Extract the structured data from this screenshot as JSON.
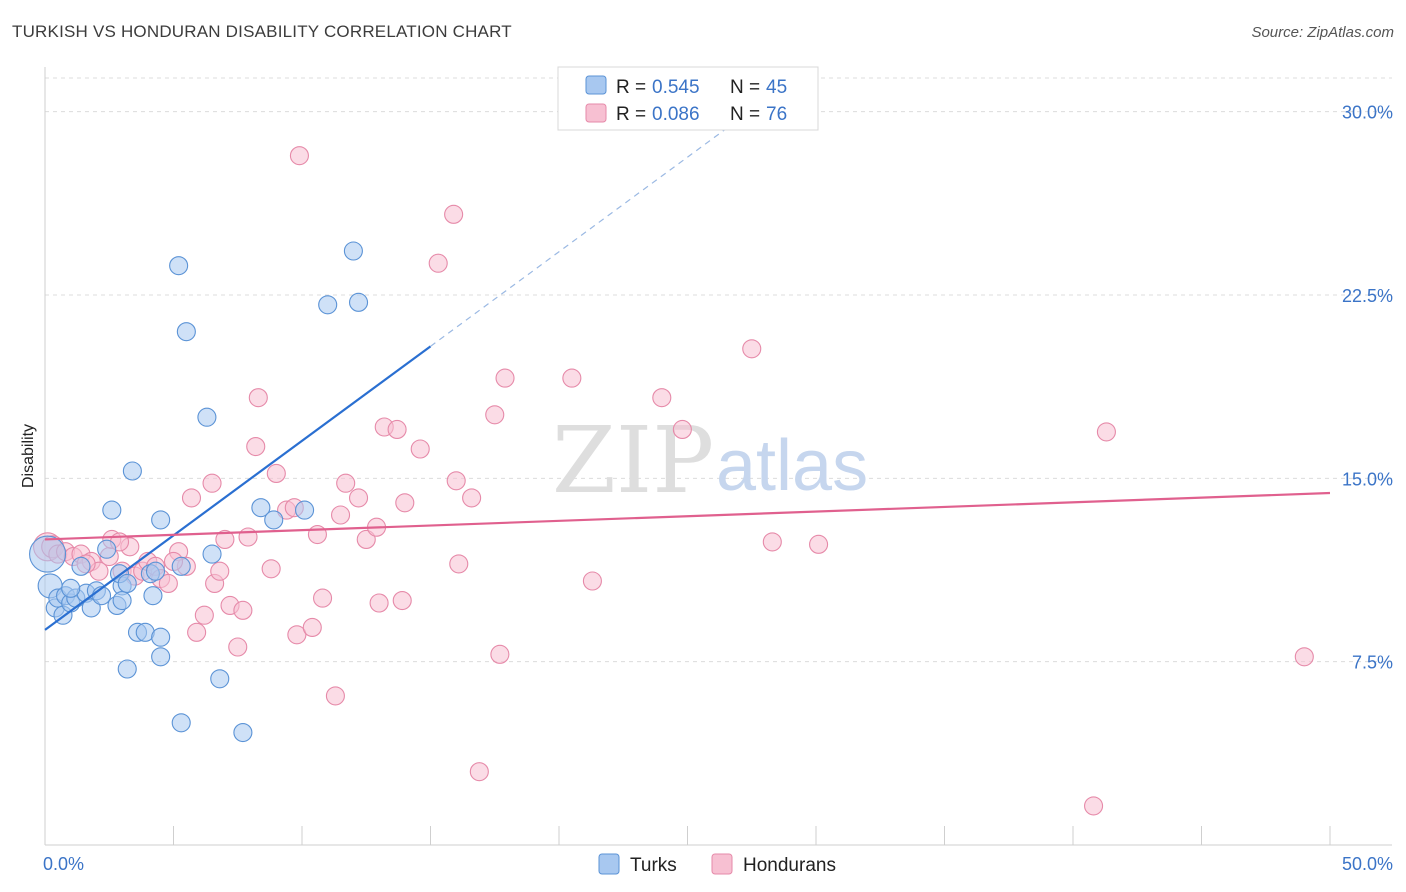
{
  "header": {
    "title": "TURKISH VS HONDURAN DISABILITY CORRELATION CHART",
    "source": "Source: ZipAtlas.com"
  },
  "watermark": {
    "zip": "ZIP",
    "atlas": "atlas"
  },
  "legend": {
    "rows": [
      {
        "r_label": "R = ",
        "r_value": "0.545",
        "n_label": "N = ",
        "n_value": "45",
        "color": "#a8c8f0"
      },
      {
        "r_label": "R = ",
        "r_value": "0.086",
        "n_label": "N = ",
        "n_value": "76",
        "color": "#f5b7cc"
      }
    ]
  },
  "bottom_legend": {
    "series1": "Turks",
    "series2": "Hondurans"
  },
  "colors": {
    "turks_fill": "#a8c8f0",
    "turks_stroke": "#5b93d6",
    "turks_line": "#2a6fd1",
    "hond_fill": "#f7c0d2",
    "hond_stroke": "#e68aa9",
    "hond_line": "#e0608e",
    "grid": "#dcdcdc",
    "tick_label": "#3b74c7"
  },
  "chart_data": {
    "type": "scatter",
    "title": "TURKISH VS HONDURAN DISABILITY CORRELATION CHART",
    "xlabel": "",
    "ylabel": "Disability",
    "xlim": [
      0,
      50
    ],
    "ylim": [
      0,
      31.5
    ],
    "x_tick_labels": [
      "0.0%",
      "50.0%"
    ],
    "y_ticks": [
      7.5,
      15.0,
      22.5,
      30.0
    ],
    "y_tick_labels": [
      "7.5%",
      "15.0%",
      "22.5%",
      "30.0%"
    ],
    "grid": true,
    "legend_position": "top-center",
    "series": [
      {
        "name": "Turks",
        "r": 0.545,
        "n": 45,
        "trend": {
          "x0": 0.0,
          "y0": 8.8,
          "x1": 15.0,
          "y1": 20.4,
          "dashed_to_x": 26.5,
          "dashed_to_y": 29.3
        },
        "points": [
          [
            0.1,
            11.9,
            18
          ],
          [
            0.2,
            10.6,
            12
          ],
          [
            0.4,
            9.7,
            9
          ],
          [
            0.5,
            10.1,
            9
          ],
          [
            0.7,
            9.4,
            9
          ],
          [
            0.8,
            10.2,
            9
          ],
          [
            1.0,
            9.9,
            9
          ],
          [
            1.2,
            10.1,
            9
          ],
          [
            1.4,
            11.4,
            9
          ],
          [
            1.6,
            10.3,
            9
          ],
          [
            1.8,
            9.7,
            9
          ],
          [
            2.0,
            10.4,
            9
          ],
          [
            2.2,
            10.2,
            9
          ],
          [
            2.4,
            12.1,
            9
          ],
          [
            2.6,
            13.7,
            9
          ],
          [
            2.8,
            9.8,
            9
          ],
          [
            3.0,
            10.6,
            9
          ],
          [
            3.2,
            7.2,
            9
          ],
          [
            3.4,
            15.3,
            9
          ],
          [
            3.6,
            8.7,
            9
          ],
          [
            3.9,
            8.7,
            9
          ],
          [
            4.2,
            10.2,
            9
          ],
          [
            4.5,
            7.7,
            9
          ],
          [
            4.5,
            8.5,
            9
          ],
          [
            4.5,
            13.3,
            9
          ],
          [
            4.1,
            11.1,
            9
          ],
          [
            5.2,
            23.7,
            9
          ],
          [
            5.3,
            5.0,
            9
          ],
          [
            5.5,
            21.0,
            9
          ],
          [
            6.3,
            17.5,
            9
          ],
          [
            6.5,
            11.9,
            9
          ],
          [
            6.8,
            6.8,
            9
          ],
          [
            7.7,
            4.6,
            9
          ],
          [
            8.4,
            13.8,
            9
          ],
          [
            8.9,
            13.3,
            9
          ],
          [
            10.1,
            13.7,
            9
          ],
          [
            11.0,
            22.1,
            9
          ],
          [
            12.0,
            24.3,
            9
          ],
          [
            12.2,
            22.2,
            9
          ],
          [
            5.3,
            11.4,
            9
          ],
          [
            3.0,
            10.0,
            9
          ],
          [
            1.0,
            10.5,
            9
          ],
          [
            2.9,
            11.1,
            9
          ],
          [
            4.3,
            11.2,
            9
          ],
          [
            3.2,
            10.7,
            9
          ]
        ]
      },
      {
        "name": "Hondurans",
        "r": 0.086,
        "n": 76,
        "trend": {
          "x0": 0.0,
          "y0": 12.5,
          "x1": 50.0,
          "y1": 14.4
        },
        "points": [
          [
            0.1,
            12.2,
            14
          ],
          [
            0.3,
            12.2,
            11
          ],
          [
            0.5,
            11.9,
            9
          ],
          [
            0.8,
            12.0,
            9
          ],
          [
            1.1,
            11.8,
            9
          ],
          [
            1.4,
            11.9,
            9
          ],
          [
            1.8,
            11.6,
            9
          ],
          [
            2.1,
            11.2,
            9
          ],
          [
            2.5,
            11.8,
            9
          ],
          [
            2.6,
            12.5,
            9
          ],
          [
            3.0,
            11.2,
            9
          ],
          [
            3.3,
            12.2,
            9
          ],
          [
            3.5,
            11.0,
            9
          ],
          [
            3.8,
            11.2,
            9
          ],
          [
            4.0,
            11.6,
            9
          ],
          [
            4.3,
            11.4,
            9
          ],
          [
            4.5,
            10.9,
            9
          ],
          [
            4.8,
            10.7,
            9
          ],
          [
            5.2,
            12.0,
            9
          ],
          [
            5.5,
            11.4,
            9
          ],
          [
            5.7,
            14.2,
            9
          ],
          [
            5.9,
            8.7,
            9
          ],
          [
            6.2,
            9.4,
            9
          ],
          [
            6.5,
            14.8,
            9
          ],
          [
            6.6,
            10.7,
            9
          ],
          [
            6.8,
            11.2,
            9
          ],
          [
            7.0,
            12.5,
            9
          ],
          [
            7.2,
            9.8,
            9
          ],
          [
            7.5,
            8.1,
            9
          ],
          [
            7.7,
            9.6,
            9
          ],
          [
            7.9,
            12.6,
            9
          ],
          [
            8.2,
            16.3,
            9
          ],
          [
            8.3,
            18.3,
            9
          ],
          [
            8.8,
            11.3,
            9
          ],
          [
            9.0,
            15.2,
            9
          ],
          [
            9.4,
            13.7,
            9
          ],
          [
            9.7,
            13.8,
            9
          ],
          [
            9.8,
            8.6,
            9
          ],
          [
            9.9,
            28.2,
            9
          ],
          [
            10.4,
            8.9,
            9
          ],
          [
            10.6,
            12.7,
            9
          ],
          [
            10.8,
            10.1,
            9
          ],
          [
            11.3,
            6.1,
            9
          ],
          [
            11.5,
            13.5,
            9
          ],
          [
            11.7,
            14.8,
            9
          ],
          [
            12.2,
            14.2,
            9
          ],
          [
            12.5,
            12.5,
            9
          ],
          [
            12.9,
            13.0,
            9
          ],
          [
            13.0,
            9.9,
            9
          ],
          [
            13.2,
            17.1,
            9
          ],
          [
            13.7,
            17.0,
            9
          ],
          [
            13.9,
            10.0,
            9
          ],
          [
            14.0,
            14.0,
            9
          ],
          [
            14.6,
            16.2,
            9
          ],
          [
            15.3,
            23.8,
            9
          ],
          [
            15.9,
            25.8,
            9
          ],
          [
            16.0,
            14.9,
            9
          ],
          [
            16.1,
            11.5,
            9
          ],
          [
            16.6,
            14.2,
            9
          ],
          [
            16.9,
            3.0,
            9
          ],
          [
            17.5,
            17.6,
            9
          ],
          [
            17.7,
            7.8,
            9
          ],
          [
            17.9,
            19.1,
            9
          ],
          [
            20.5,
            19.1,
            9
          ],
          [
            21.3,
            10.8,
            9
          ],
          [
            24.0,
            18.3,
            9
          ],
          [
            24.8,
            17.0,
            9
          ],
          [
            27.5,
            20.3,
            9
          ],
          [
            28.3,
            12.4,
            9
          ],
          [
            30.1,
            12.3,
            9
          ],
          [
            41.3,
            16.9,
            9
          ],
          [
            40.8,
            1.6,
            9
          ],
          [
            49.0,
            7.7,
            9
          ],
          [
            2.9,
            12.4,
            9
          ],
          [
            1.6,
            11.5,
            9
          ],
          [
            5.0,
            11.6,
            9
          ]
        ]
      }
    ]
  }
}
